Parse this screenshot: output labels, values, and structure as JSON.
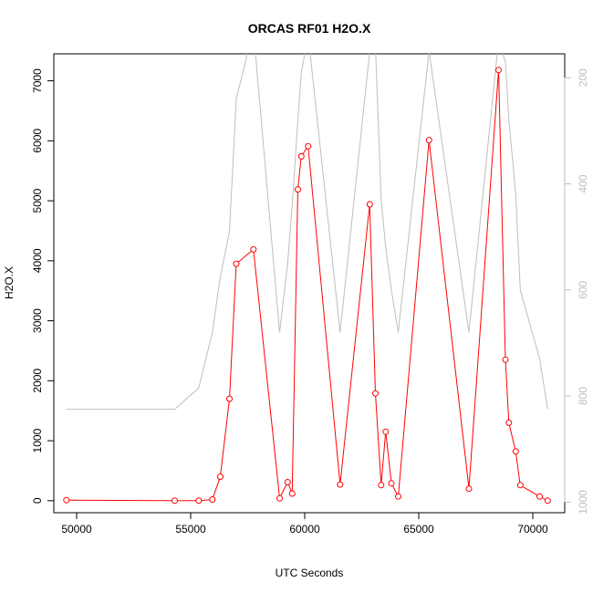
{
  "chart_data": {
    "type": "line",
    "title": "ORCAS RF01 H2O.X",
    "xlabel": "UTC Seconds",
    "ylabel": "H2O.X",
    "xlim": [
      49000,
      71400
    ],
    "ylim": [
      -200,
      7450
    ],
    "y2lim": [
      1020,
      155
    ],
    "x_ticks": [
      50000,
      55000,
      60000,
      65000,
      70000
    ],
    "y_ticks": [
      0,
      1000,
      2000,
      3000,
      4000,
      5000,
      6000,
      7000
    ],
    "y2_ticks": [
      200,
      400,
      600,
      800,
      1000
    ],
    "colors": {
      "primary": "#ff0000",
      "secondary": "#bebebe",
      "axis": "#000000"
    },
    "series": [
      {
        "axis": "left",
        "marker": "open-circle",
        "x": [
          49550,
          54300,
          55350,
          55950,
          56300,
          56700,
          57000,
          57750,
          58900,
          59250,
          59450,
          59700,
          59850,
          60150,
          61550,
          62850,
          63100,
          63350,
          63550,
          63800,
          64100,
          65450,
          67200,
          68500,
          68800,
          68950,
          69250,
          69450,
          70300,
          70650
        ],
        "y": [
          10,
          0,
          0,
          20,
          400,
          1700,
          3950,
          4190,
          40,
          310,
          120,
          5190,
          5740,
          5910,
          270,
          4940,
          1790,
          260,
          1150,
          290,
          70,
          6010,
          200,
          7180,
          2350,
          1300,
          820,
          260,
          70,
          0
        ]
      },
      {
        "axis": "right",
        "x": [
          49550,
          54300,
          55350,
          55950,
          56300,
          56700,
          57000,
          57750,
          58900,
          59250,
          59450,
          59700,
          59850,
          60150,
          61550,
          62850,
          63100,
          63350,
          63550,
          63800,
          64100,
          65450,
          67200,
          68500,
          68800,
          68950,
          69250,
          69450,
          70300,
          70650
        ],
        "y": [
          825,
          825,
          785,
          680,
          575,
          490,
          240,
          110,
          680,
          550,
          440,
          280,
          190,
          120,
          680,
          150,
          140,
          430,
          520,
          600,
          680,
          150,
          680,
          130,
          170,
          280,
          420,
          600,
          730,
          825
        ]
      }
    ]
  }
}
